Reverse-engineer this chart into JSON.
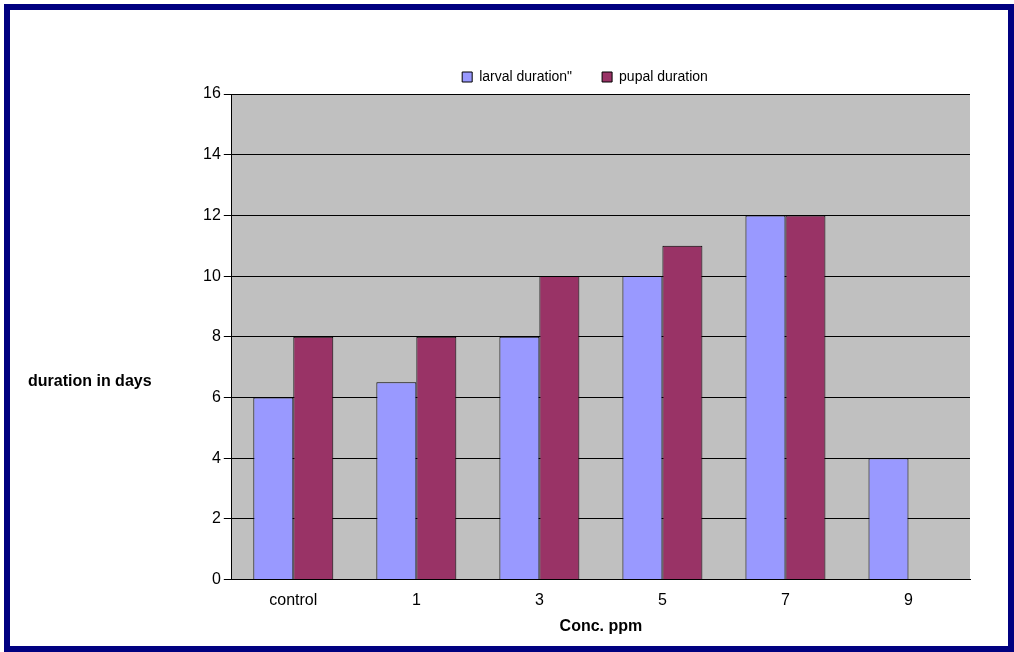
{
  "chart_data": {
    "type": "bar",
    "xlabel": "Conc. ppm",
    "ylabel": "duration in days",
    "categories": [
      "control",
      "1",
      "3",
      "5",
      "7",
      "9"
    ],
    "series": [
      {
        "name": "larval duration\"",
        "color": "#9999ff",
        "values": [
          6,
          6.5,
          8,
          10,
          12,
          4
        ]
      },
      {
        "name": "pupal duration",
        "color": "#993366",
        "values": [
          8,
          8,
          10,
          11,
          12,
          0
        ]
      }
    ],
    "ylim": [
      0,
      16
    ],
    "yticks": [
      0,
      2,
      4,
      6,
      8,
      10,
      12,
      14,
      16
    ],
    "grid": "y",
    "legend": "top"
  }
}
